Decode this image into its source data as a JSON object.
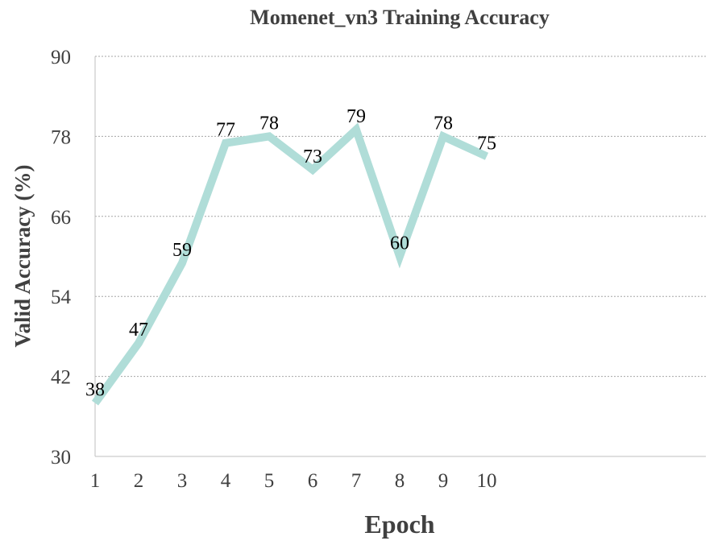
{
  "chart_data": {
    "type": "line",
    "title": "Momenet_vn3 Training Accuracy",
    "xlabel": "Epoch",
    "ylabel": "Valid Accuracy (%)",
    "ylim": [
      30,
      90
    ],
    "yticks": [
      30,
      42,
      54,
      66,
      78,
      90
    ],
    "categories": [
      "1",
      "2",
      "3",
      "4",
      "5",
      "6",
      "7",
      "8",
      "9",
      "10"
    ],
    "series": [
      {
        "values": [
          38,
          47,
          59,
          77,
          78,
          73,
          79,
          60,
          78,
          75
        ],
        "labels": [
          "38",
          "47",
          "59",
          "77",
          "78",
          "73",
          "79",
          "60",
          "78",
          "75"
        ],
        "color": "#b0ddd8"
      }
    ],
    "grid": true,
    "legend": "none"
  }
}
